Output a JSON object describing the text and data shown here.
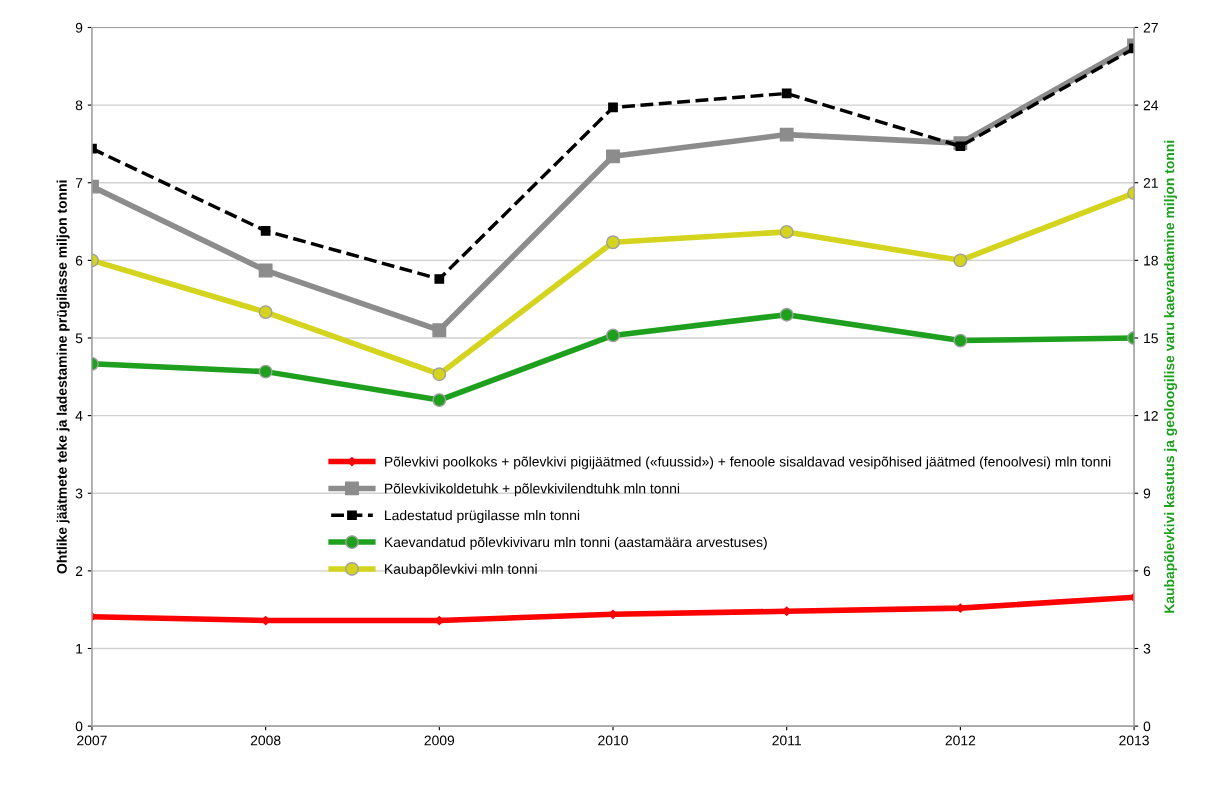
{
  "chart_data": {
    "type": "line",
    "ylabel": "Ohtlike jäätmete teke ja ladestamine prügilasse miljon tonni",
    "y2label": "Kaubapõlevkivi kasutus ja geoloogilise varu kaevandamine miljon tonni",
    "x": [
      2007,
      2008,
      2009,
      2010,
      2011,
      2012,
      2013
    ],
    "xlim": [
      2007,
      2013
    ],
    "xticks": [
      2007,
      2008,
      2009,
      2010,
      2011,
      2012,
      2013
    ],
    "ylim": [
      0,
      9
    ],
    "yticks": [
      0,
      1,
      2,
      3,
      4,
      5,
      6,
      7,
      8,
      9
    ],
    "y2lim": [
      0,
      27
    ],
    "y2ticks": [
      0,
      3,
      6,
      9,
      12,
      15,
      18,
      21,
      24,
      27
    ],
    "grid": "y",
    "legend": "center right",
    "series": [
      {
        "name": "Põlevkivi poolkoks + põlevkivi pigijäätmed («fuussid») + fenoole sisaldavad vesipõhised jäätmed (fenoolvesi) mln tonni",
        "color": "#ff0000",
        "marker": "diamond",
        "line_style": "solid",
        "values": [
          1.41,
          1.36,
          1.36,
          1.44,
          1.48,
          1.52,
          1.66
        ]
      },
      {
        "name": "Põlevkivikoldetuhk + põlevkivilendtuhk mln tonni",
        "color": "#8c8c8c",
        "marker": "square",
        "line_style": "solid",
        "values": [
          6.95,
          5.87,
          5.1,
          7.34,
          7.62,
          7.51,
          8.77
        ]
      },
      {
        "name": "Ladestatud prügilasse mln tonni",
        "color": "#000000",
        "marker": "square",
        "line_style": "dashed",
        "values": [
          7.44,
          6.38,
          5.76,
          7.97,
          8.15,
          7.47,
          8.73
        ]
      },
      {
        "name": "Kaevandatud põlevkivivaru mln tonni (aastamäära arvestuses)",
        "color": "#1ea01e",
        "marker": "circle",
        "line_style": "solid",
        "axis": "y2",
        "values": [
          14.0,
          13.7,
          12.6,
          15.1,
          15.9,
          14.9,
          15.0
        ]
      },
      {
        "name": "Kaubapõlevkivi mln tonni",
        "color": "#d4d41e",
        "marker": "circle",
        "line_style": "solid",
        "axis": "y2",
        "values": [
          18.0,
          16.0,
          13.6,
          18.7,
          19.1,
          18.0,
          20.6
        ]
      }
    ]
  }
}
